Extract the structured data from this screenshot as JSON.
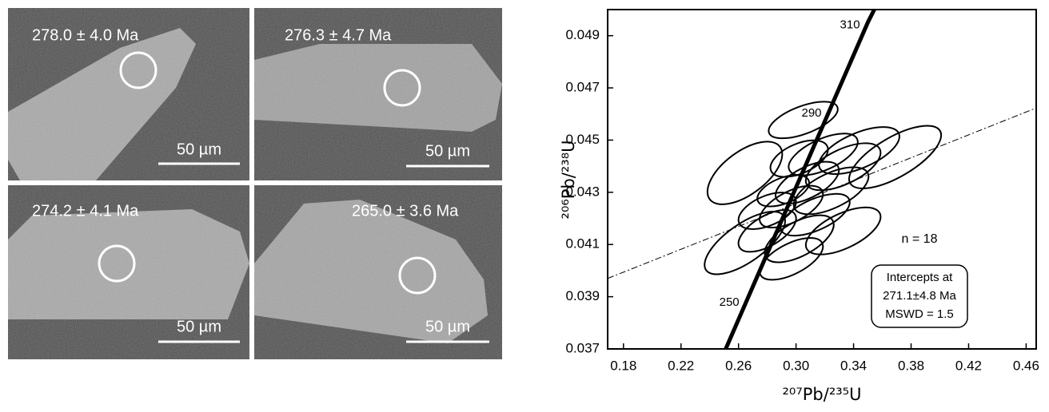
{
  "images": [
    {
      "label": "278.0 ± 4.0 Ma",
      "scale_bar": "50 µm"
    },
    {
      "label": "276.3 ± 4.7 Ma",
      "scale_bar": "50 µm"
    },
    {
      "label": "274.2 ± 4.1 Ma",
      "scale_bar": "50 µm"
    },
    {
      "label": "265.0 ± 3.6 Ma",
      "scale_bar": "50 µm"
    }
  ],
  "chart_data": {
    "type": "concordia",
    "xlabel": "²⁰⁷Pb/²³⁵U",
    "ylabel": "²⁰⁶Pb/²³⁸U",
    "xlim": [
      0.169,
      0.467
    ],
    "ylim": [
      0.037,
      0.05
    ],
    "xticks": [
      0.18,
      0.22,
      0.26,
      {
        "value": 0.3,
        "label": "0.30"
      },
      0.34,
      0.38,
      0.42,
      0.46
    ],
    "yticks": [
      0.037,
      0.039,
      0.041,
      0.043,
      0.045,
      0.047,
      0.049
    ],
    "concordia": {
      "x": [
        0.2511,
        0.2661,
        0.3233,
        0.35,
        0.3544
      ],
      "y": [
        0.037,
        0.0389,
        0.04614,
        0.04952,
        0.05
      ],
      "ages": [
        null,
        250,
        290,
        310,
        null
      ]
    },
    "discordia": {
      "x": [
        0.169,
        0.467
      ],
      "y": [
        0.0397,
        0.04623
      ]
    },
    "ellipses": {
      "x": [
        0.305,
        0.2644,
        0.3689,
        0.3022,
        0.3189,
        0.3328,
        0.3439,
        0.2911,
        0.3078,
        0.3244,
        0.28,
        0.2967,
        0.3133,
        0.28,
        0.3022,
        0.2644,
        0.3328,
        0.2967
      ],
      "y": [
        0.04577,
        0.04374,
        0.04435,
        0.04429,
        0.04445,
        0.04398,
        0.0446,
        0.04306,
        0.04337,
        0.04306,
        0.04229,
        0.04245,
        0.04214,
        0.04152,
        0.04122,
        0.04106,
        0.04152,
        0.04045
      ],
      "x_err": [
        0.024,
        0.026,
        0.032,
        0.02,
        0.024,
        0.026,
        0.028,
        0.018,
        0.022,
        0.026,
        0.02,
        0.022,
        0.024,
        0.02,
        0.024,
        0.028,
        0.026,
        0.022
      ],
      "y_err": [
        0.0007,
        0.0012,
        0.0012,
        0.0007,
        0.0008,
        0.0009,
        0.0009,
        0.0006,
        0.0008,
        0.0009,
        0.0007,
        0.0008,
        0.0008,
        0.0008,
        0.0009,
        0.0012,
        0.0009,
        0.0008
      ],
      "rho": [
        0.6,
        0.6,
        0.7,
        0.5,
        0.6,
        0.6,
        0.6,
        0.5,
        0.6,
        0.6,
        0.5,
        0.6,
        0.6,
        0.6,
        0.6,
        0.7,
        0.6,
        0.6
      ]
    },
    "annotations": [
      "n = 18",
      "Intercepts at",
      "271.1±4.8 Ma",
      "MSWD = 1.5"
    ]
  }
}
